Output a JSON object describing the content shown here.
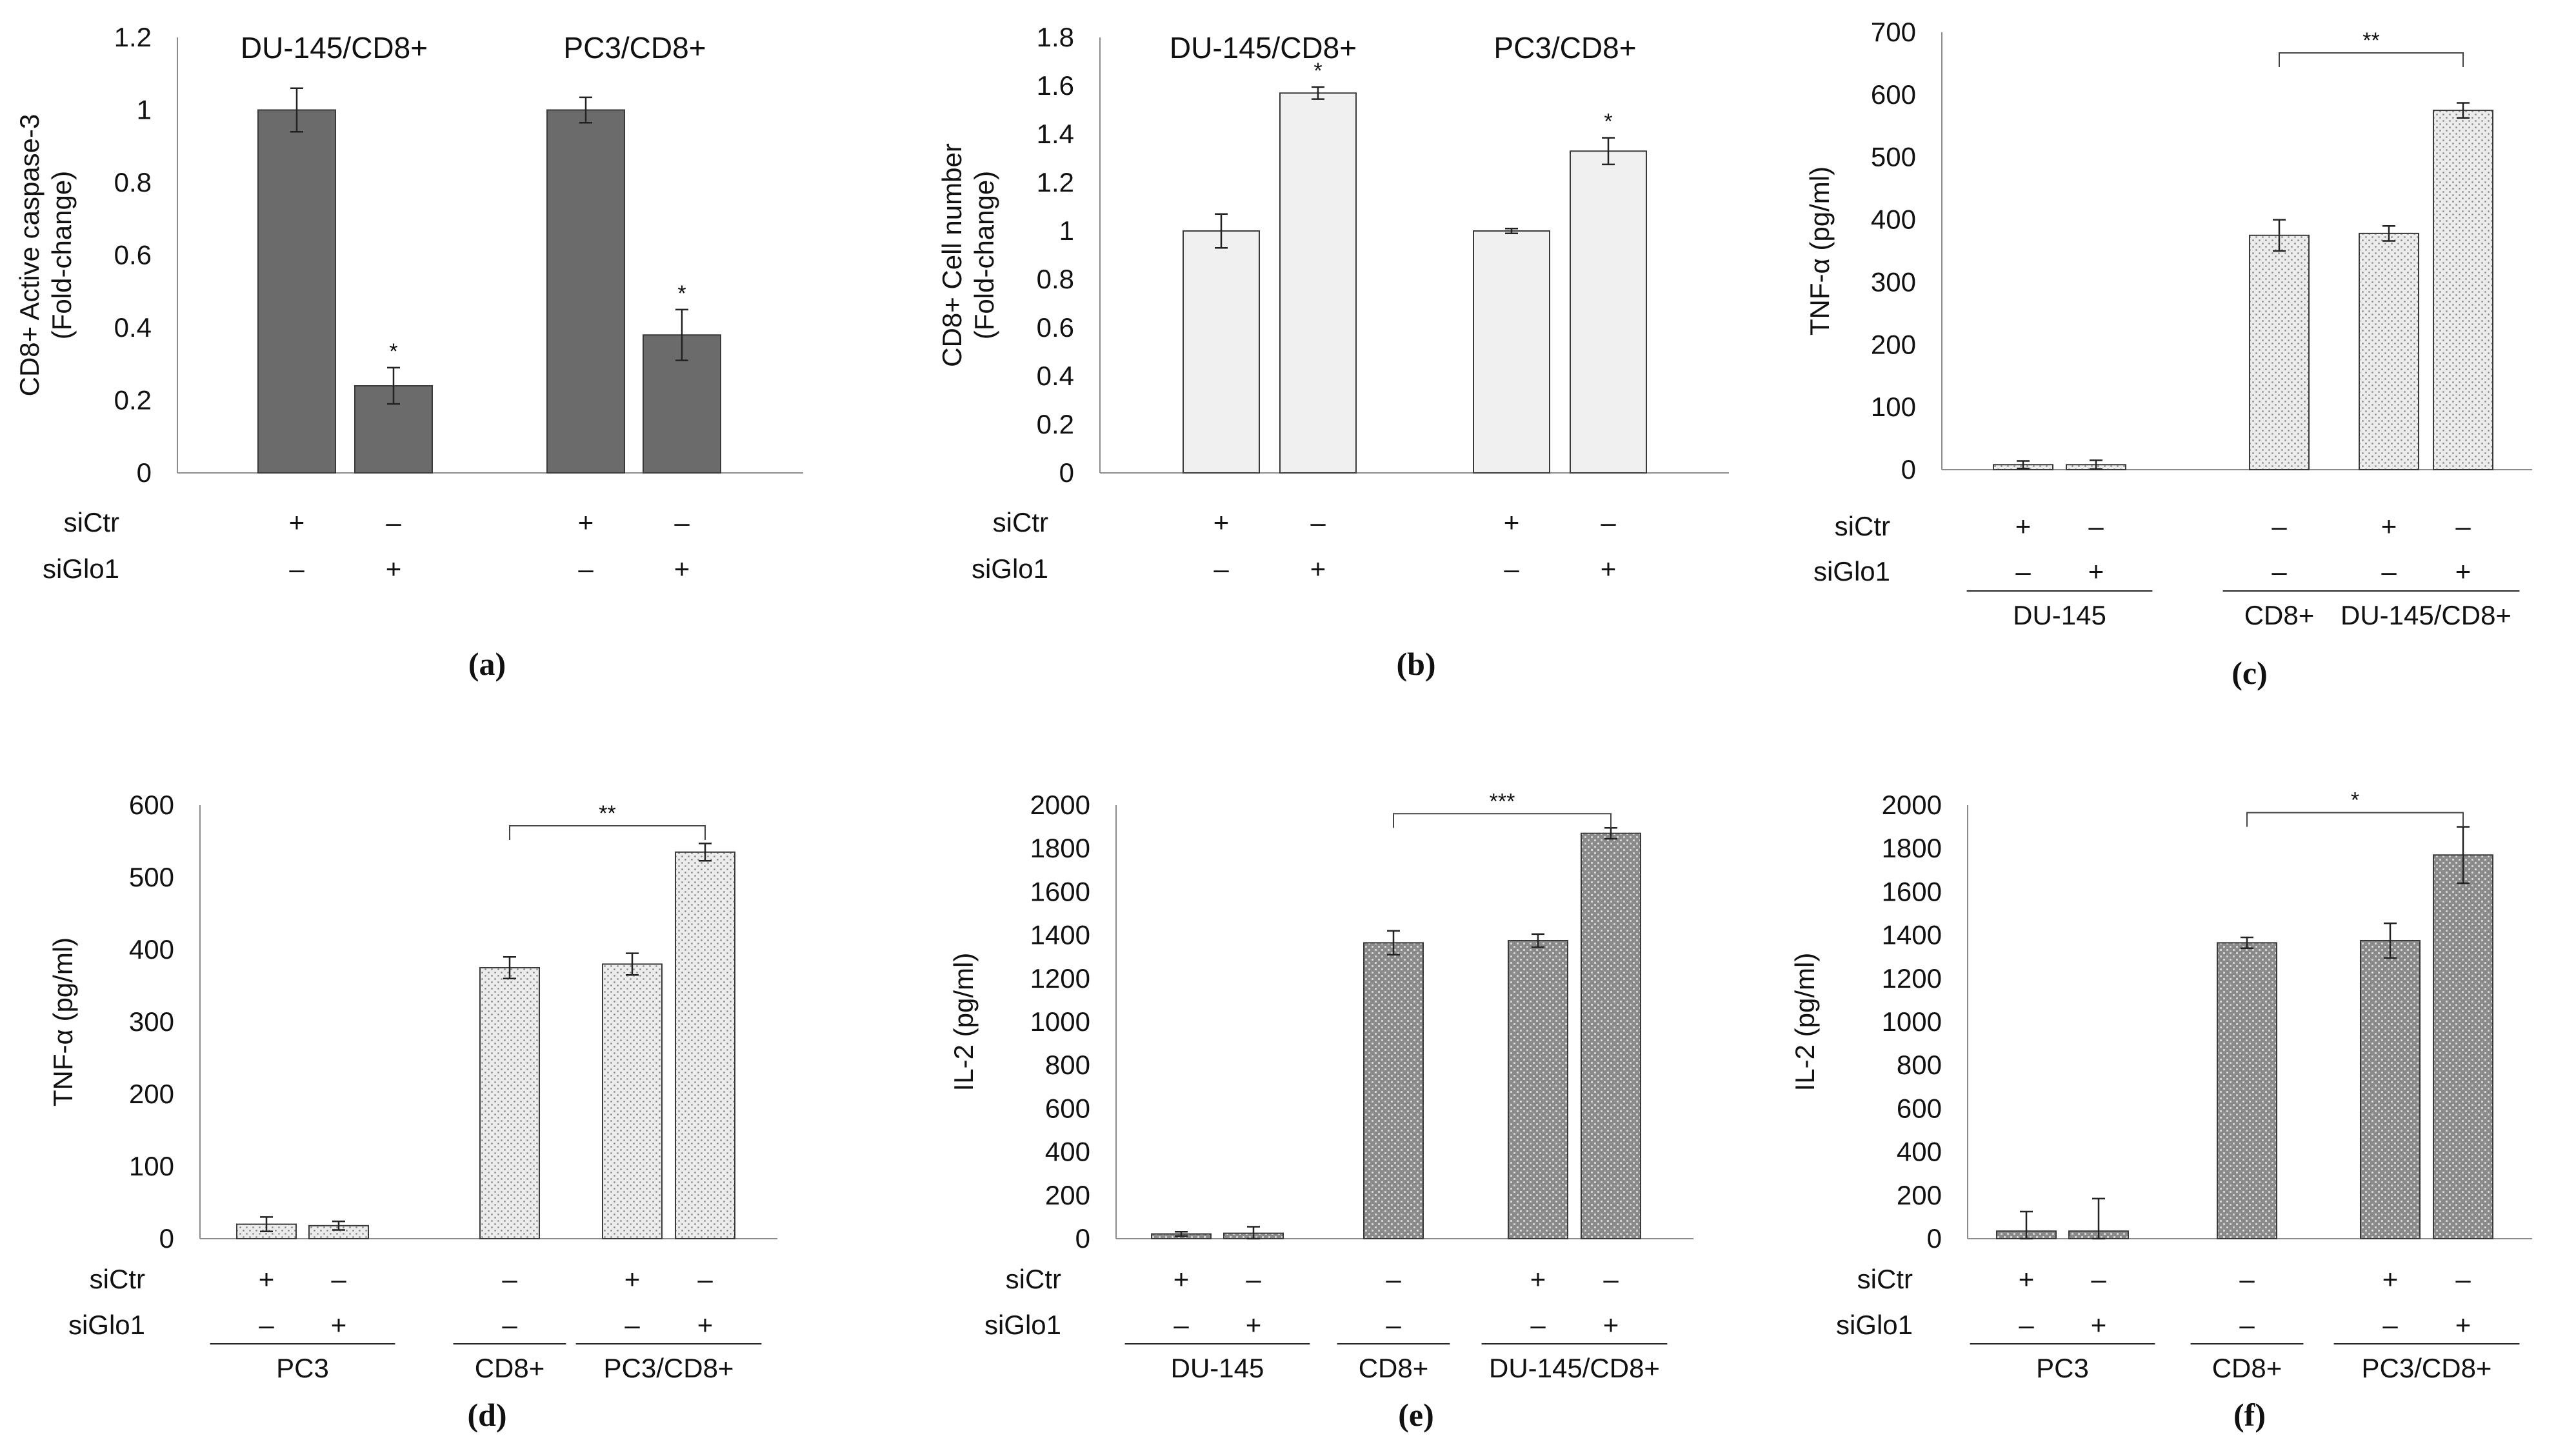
{
  "colors": {
    "dark_bar": "#6b6b6b",
    "light_bar": "#f0f0f0",
    "dot_bar": "#e4e4e4",
    "dot_dark_bar": "#8a8a8a",
    "axis": "#8c8c8c",
    "text": "#111111"
  },
  "chart_data": [
    {
      "panel": "(a)",
      "type": "bar",
      "style": "dark",
      "ylabel": [
        "CD8+ Active caspase-3",
        "(Fold-change)"
      ],
      "ylim": [
        0,
        1.2
      ],
      "yticks": [
        "0",
        "0.2",
        "0.4",
        "0.6",
        "0.8",
        "1",
        "1.2"
      ],
      "group_titles": [
        "DU-145/CD8+",
        "PC3/CD8+"
      ],
      "categories": [
        "DU-145/CD8+ siCtr",
        "DU-145/CD8+ siGlo1",
        "PC3/CD8+ siCtr",
        "PC3/CD8+ siGlo1"
      ],
      "values": [
        1.0,
        0.24,
        1.0,
        0.38
      ],
      "errors": [
        0.06,
        0.05,
        0.035,
        0.07
      ],
      "annotations": [
        "",
        "*",
        "",
        "*"
      ],
      "rows": [
        {
          "label": "siCtr",
          "marks": [
            "+",
            "–",
            "+",
            "–"
          ]
        },
        {
          "label": "siGlo1",
          "marks": [
            "–",
            "+",
            "–",
            "+"
          ]
        }
      ],
      "group_labels": []
    },
    {
      "panel": "(b)",
      "type": "bar",
      "style": "light",
      "ylabel": [
        "CD8+ Cell number",
        "(Fold-change)"
      ],
      "ylim": [
        0,
        1.8
      ],
      "yticks": [
        "0",
        "0.2",
        "0.4",
        "0.6",
        "0.8",
        "1",
        "1.2",
        "1.4",
        "1.6",
        "1.8"
      ],
      "group_titles": [
        "DU-145/CD8+",
        "PC3/CD8+"
      ],
      "categories": [
        "DU-145/CD8+ siCtr",
        "DU-145/CD8+ siGlo1",
        "PC3/CD8+ siCtr",
        "PC3/CD8+ siGlo1"
      ],
      "values": [
        1.0,
        1.57,
        1.0,
        1.33
      ],
      "errors": [
        0.07,
        0.025,
        0.01,
        0.055
      ],
      "annotations": [
        "",
        "*",
        "",
        "*"
      ],
      "rows": [
        {
          "label": "siCtr",
          "marks": [
            "+",
            "–",
            "+",
            "–"
          ]
        },
        {
          "label": "siGlo1",
          "marks": [
            "–",
            "+",
            "–",
            "+"
          ]
        }
      ],
      "group_labels": []
    },
    {
      "panel": "(c)",
      "type": "bar",
      "style": "dot",
      "ylabel": [
        "TNF-α (pg/ml)"
      ],
      "ylim": [
        0,
        700
      ],
      "yticks": [
        "0",
        "100",
        "200",
        "300",
        "400",
        "500",
        "600",
        "700"
      ],
      "group_titles": [],
      "categories": [
        "DU-145 siCtr",
        "DU-145 siGlo1",
        "CD8+",
        "DU-145/CD8+ siCtr",
        "DU-145/CD8+ siGlo1"
      ],
      "values": [
        8,
        8,
        375,
        378,
        575
      ],
      "errors": [
        6,
        7,
        25,
        12,
        12
      ],
      "annotations": [
        "",
        "",
        "",
        "",
        ""
      ],
      "bracket": {
        "from": 2,
        "to": 4,
        "label": "**"
      },
      "rows": [
        {
          "label": "siCtr",
          "marks": [
            "+",
            "–",
            "–",
            "+",
            "–"
          ]
        },
        {
          "label": "siGlo1",
          "marks": [
            "–",
            "+",
            "–",
            "–",
            "+"
          ]
        }
      ],
      "group_labels": [
        {
          "label": "DU-145",
          "from": 0,
          "to": 1
        },
        {
          "label": "CD8+",
          "from": 2,
          "to": 2
        },
        {
          "label": "DU-145/CD8+",
          "from": 3,
          "to": 4
        }
      ]
    },
    {
      "panel": "(d)",
      "type": "bar",
      "style": "dot",
      "ylabel": [
        "TNF-α (pg/ml)"
      ],
      "ylim": [
        0,
        600
      ],
      "yticks": [
        "0",
        "100",
        "200",
        "300",
        "400",
        "500",
        "600"
      ],
      "group_titles": [],
      "categories": [
        "PC3 siCtr",
        "PC3 siGlo1",
        "CD8+",
        "PC3/CD8+ siCtr",
        "PC3/CD8+ siGlo1"
      ],
      "values": [
        20,
        18,
        375,
        380,
        535
      ],
      "errors": [
        10,
        6,
        15,
        15,
        12
      ],
      "annotations": [
        "",
        "",
        "",
        "",
        ""
      ],
      "bracket": {
        "from": 2,
        "to": 4,
        "label": "**"
      },
      "rows": [
        {
          "label": "siCtr",
          "marks": [
            "+",
            "–",
            "–",
            "+",
            "–"
          ]
        },
        {
          "label": "siGlo1",
          "marks": [
            "–",
            "+",
            "–",
            "–",
            "+"
          ]
        }
      ],
      "group_labels": [
        {
          "label": "PC3",
          "from": 0,
          "to": 1
        },
        {
          "label": "CD8+",
          "from": 2,
          "to": 2
        },
        {
          "label": "PC3/CD8+",
          "from": 3,
          "to": 4
        }
      ]
    },
    {
      "panel": "(e)",
      "type": "bar",
      "style": "dotdark",
      "ylabel": [
        "IL-2 (pg/ml)"
      ],
      "ylim": [
        0,
        2000
      ],
      "yticks": [
        "0",
        "200",
        "400",
        "600",
        "800",
        "1000",
        "1200",
        "1400",
        "1600",
        "1800",
        "2000"
      ],
      "group_titles": [],
      "categories": [
        "DU-145 siCtr",
        "DU-145 siGlo1",
        "CD8+",
        "DU-145/CD8+ siCtr",
        "DU-145/CD8+ siGlo1"
      ],
      "values": [
        22,
        25,
        1365,
        1375,
        1870
      ],
      "errors": [
        10,
        30,
        55,
        30,
        25
      ],
      "annotations": [
        "",
        "",
        "",
        "",
        ""
      ],
      "bracket": {
        "from": 2,
        "to": 4,
        "label": "***"
      },
      "rows": [
        {
          "label": "siCtr",
          "marks": [
            "+",
            "–",
            "–",
            "+",
            "–"
          ]
        },
        {
          "label": "siGlo1",
          "marks": [
            "–",
            "+",
            "–",
            "–",
            "+"
          ]
        }
      ],
      "group_labels": [
        {
          "label": "DU-145",
          "from": 0,
          "to": 1
        },
        {
          "label": "CD8+",
          "from": 2,
          "to": 2
        },
        {
          "label": "DU-145/CD8+",
          "from": 3,
          "to": 4
        }
      ]
    },
    {
      "panel": "(f)",
      "type": "bar",
      "style": "dotdark",
      "ylabel": [
        "IL-2 (pg/ml)"
      ],
      "ylim": [
        0,
        2000
      ],
      "yticks": [
        "0",
        "200",
        "400",
        "600",
        "800",
        "1000",
        "1200",
        "1400",
        "1600",
        "1800",
        "2000"
      ],
      "group_titles": [],
      "categories": [
        "PC3 siCtr",
        "PC3 siGlo1",
        "CD8+",
        "PC3/CD8+ siCtr",
        "PC3/CD8+ siGlo1"
      ],
      "values": [
        35,
        35,
        1365,
        1375,
        1770
      ],
      "errors": [
        90,
        150,
        25,
        80,
        130
      ],
      "annotations": [
        "",
        "",
        "",
        "",
        ""
      ],
      "bracket": {
        "from": 2,
        "to": 4,
        "label": "*"
      },
      "rows": [
        {
          "label": "siCtr",
          "marks": [
            "+",
            "–",
            "–",
            "+",
            "–"
          ]
        },
        {
          "label": "siGlo1",
          "marks": [
            "–",
            "+",
            "–",
            "–",
            "+"
          ]
        }
      ],
      "group_labels": [
        {
          "label": "PC3",
          "from": 0,
          "to": 1
        },
        {
          "label": "CD8+",
          "from": 2,
          "to": 2
        },
        {
          "label": "PC3/CD8+",
          "from": 3,
          "to": 4
        }
      ]
    }
  ]
}
